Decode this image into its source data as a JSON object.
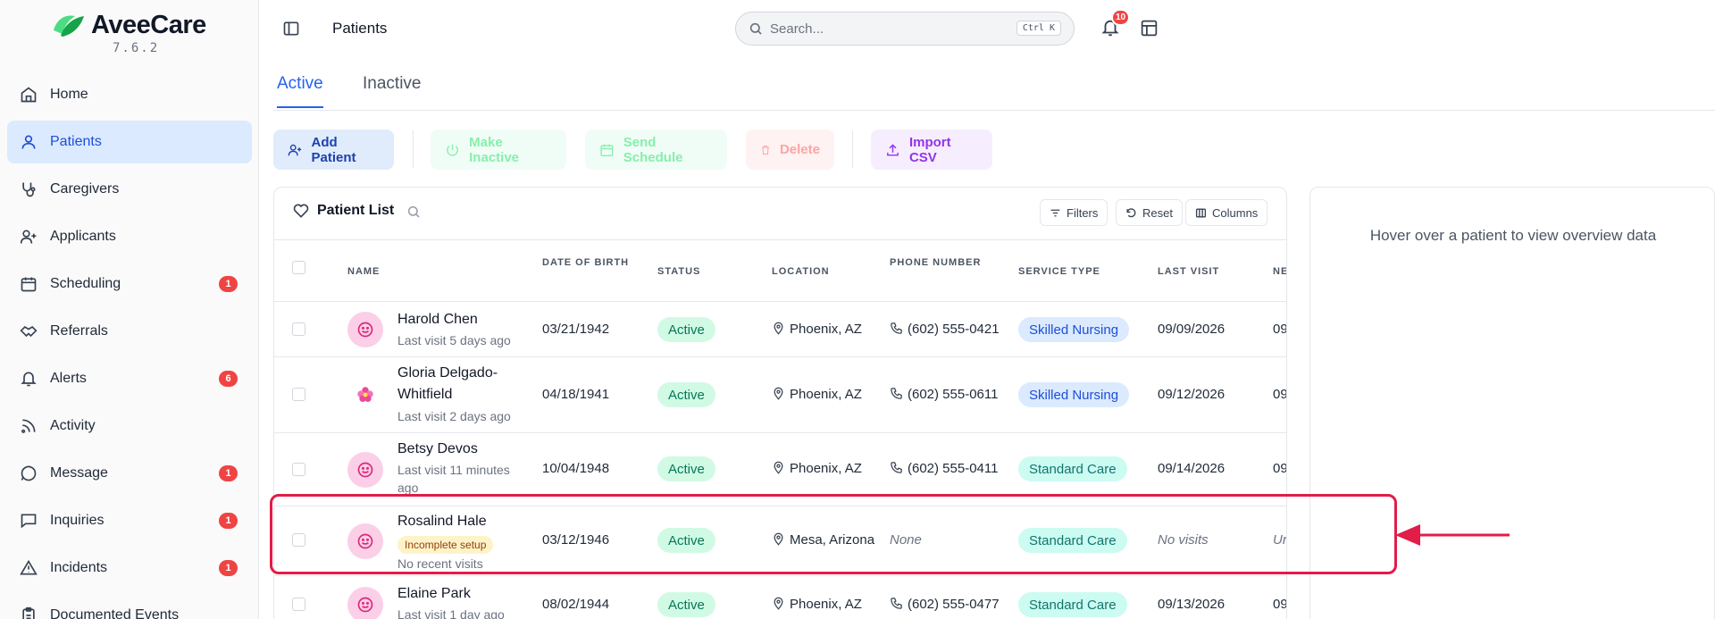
{
  "app": {
    "name": "AveeCare",
    "version": "7.6.2"
  },
  "sidebar": {
    "items": [
      {
        "label": "Home",
        "icon": "home-icon"
      },
      {
        "label": "Patients",
        "icon": "user-icon",
        "active": true
      },
      {
        "label": "Caregivers",
        "icon": "stethoscope-icon"
      },
      {
        "label": "Applicants",
        "icon": "user-plus-icon"
      },
      {
        "label": "Scheduling",
        "icon": "calendar-icon",
        "badge": "1"
      },
      {
        "label": "Referrals",
        "icon": "handshake-icon"
      },
      {
        "label": "Alerts",
        "icon": "bell-icon",
        "badge": "6"
      },
      {
        "label": "Activity",
        "icon": "rss-icon"
      },
      {
        "label": "Message",
        "icon": "message-circle-icon",
        "badge": "1"
      },
      {
        "label": "Inquiries",
        "icon": "message-square-icon",
        "badge": "1"
      },
      {
        "label": "Incidents",
        "icon": "alert-triangle-icon",
        "badge": "1"
      },
      {
        "label": "Documented Events",
        "icon": "clipboard-icon"
      }
    ]
  },
  "header": {
    "title": "Patients",
    "search_placeholder": "Search...",
    "search_shortcut": "Ctrl K",
    "notification_count": "10"
  },
  "tabs": [
    {
      "label": "Active",
      "active": true
    },
    {
      "label": "Inactive",
      "active": false
    }
  ],
  "actions": {
    "add": "Add Patient",
    "make_inactive": "Make Inactive",
    "send_schedule": "Send Schedule",
    "delete": "Delete",
    "import_csv": "Import CSV"
  },
  "list": {
    "title": "Patient List",
    "filters": "Filters",
    "reset": "Reset",
    "columns_btn": "Columns",
    "columns": {
      "name": "NAME",
      "dob": "DATE OF BIRTH",
      "status": "STATUS",
      "location": "LOCATION",
      "phone": "PHONE NUMBER",
      "service": "SERVICE TYPE",
      "last_visit": "LAST VISIT",
      "next": "NE"
    },
    "rows": [
      {
        "name": "Harold Chen",
        "sub": "Last visit 5 days ago",
        "dob": "03/21/1942",
        "status": "Active",
        "location": "Phoenix, AZ",
        "phone": "(602) 555-0421",
        "service": "Skilled Nursing",
        "last_visit": "09/09/2026",
        "next": "09"
      },
      {
        "name1": "Gloria Delgado-",
        "name2": "Whitfield",
        "sub": "Last visit 2 days ago",
        "dob": "04/18/1941",
        "status": "Active",
        "location": "Phoenix, AZ",
        "phone": "(602) 555-0611",
        "service": "Skilled Nursing",
        "last_visit": "09/12/2026",
        "next": "09"
      },
      {
        "name": "Betsy Devos",
        "sub1": "Last visit 11 minutes",
        "sub2": "ago",
        "dob": "10/04/1948",
        "status": "Active",
        "location": "Phoenix, AZ",
        "phone": "(602) 555-0411",
        "service": "Standard Care",
        "last_visit": "09/14/2026",
        "next": "09"
      },
      {
        "name": "Rosalind Hale",
        "badge": "Incomplete setup",
        "sub": "No recent visits",
        "dob": "03/12/1946",
        "status": "Active",
        "location": "Mesa, Arizona",
        "phone": "None",
        "service": "Standard Care",
        "last_visit": "No visits",
        "next": "Ur"
      },
      {
        "name": "Elaine Park",
        "sub": "Last visit 1 day ago",
        "dob": "08/02/1944",
        "status": "Active",
        "location": "Phoenix, AZ",
        "phone": "(602) 555-0477",
        "service": "Standard Care",
        "last_visit": "09/13/2026",
        "next": "09"
      }
    ]
  },
  "overview": {
    "text": "Hover over a patient to view overview data"
  },
  "colors": {
    "accent": "#2563eb",
    "highlight": "#e11d48",
    "badge": "#ef4444"
  }
}
